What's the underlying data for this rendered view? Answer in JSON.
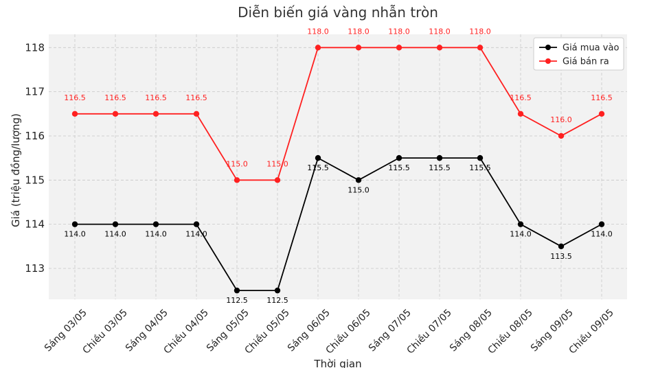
{
  "chart_data": {
    "type": "line",
    "title": "Diễn biến giá vàng nhẫn tròn",
    "xlabel": "Thời gian",
    "ylabel": "Giá (triệu đồng/lượng)",
    "categories": [
      "Sáng 03/05",
      "Chiều 03/05",
      "Sáng 04/05",
      "Chiều 04/05",
      "Sáng 05/05",
      "Chiều 05/05",
      "Sáng 06/05",
      "Chiều 06/05",
      "Sáng 07/05",
      "Chiều 07/05",
      "Sáng 08/05",
      "Chiều 08/05",
      "Sáng 09/05",
      "Chiều 09/05"
    ],
    "series": [
      {
        "name": "Giá mua vào",
        "color": "#000000",
        "values": [
          114.0,
          114.0,
          114.0,
          114.0,
          112.5,
          112.5,
          115.5,
          115.0,
          115.5,
          115.5,
          115.5,
          114.0,
          113.5,
          114.0
        ],
        "labels": [
          "114.0",
          "114.0",
          "114.0",
          "114.0",
          "112.5",
          "112.5",
          "115.5",
          "115.0",
          "115.5",
          "115.5",
          "115.5",
          "114.0",
          "113.5",
          "114.0"
        ]
      },
      {
        "name": "Giá bán ra",
        "color": "#ff2020",
        "values": [
          116.5,
          116.5,
          116.5,
          116.5,
          115.0,
          115.0,
          118.0,
          118.0,
          118.0,
          118.0,
          118.0,
          116.5,
          116.0,
          116.5
        ],
        "labels": [
          "116.5",
          "116.5",
          "116.5",
          "116.5",
          "115.0",
          "115.0",
          "118.0",
          "118.0",
          "118.0",
          "118.0",
          "118.0",
          "116.5",
          "116.0",
          "116.5"
        ]
      }
    ],
    "yticks": [
      113,
      114,
      115,
      116,
      117,
      118
    ],
    "ylim": [
      112.3,
      118.3
    ],
    "grid": true,
    "legend": "top-right",
    "background": "#f2f2f2"
  }
}
